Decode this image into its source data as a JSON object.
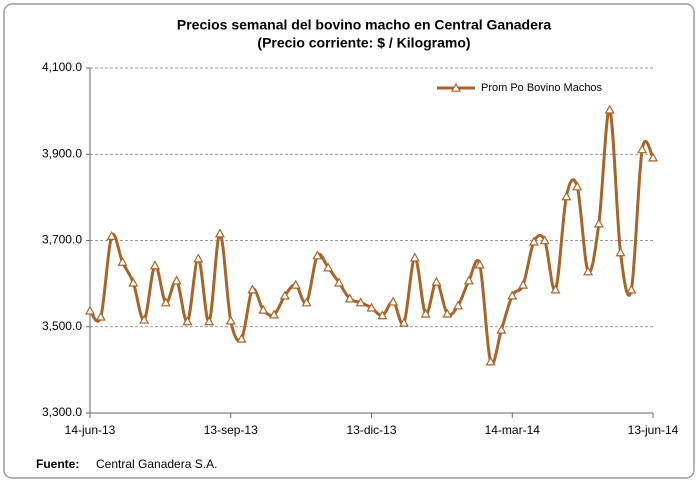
{
  "chart_data": {
    "type": "line",
    "title": "Precios semanal del bovino  macho en Central Ganadera",
    "subtitle": "(Precio corriente: $ / Kilogramo)",
    "categories": [
      "14-jun-13",
      null,
      null,
      null,
      null,
      null,
      null,
      null,
      null,
      null,
      null,
      null,
      null,
      "13-sep-13",
      null,
      null,
      null,
      null,
      null,
      null,
      null,
      null,
      null,
      null,
      null,
      null,
      "13-dic-13",
      null,
      null,
      null,
      null,
      null,
      null,
      null,
      null,
      null,
      null,
      null,
      null,
      "14-mar-14",
      null,
      null,
      null,
      null,
      null,
      null,
      null,
      null,
      null,
      null,
      null,
      null,
      "13-jun-14"
    ],
    "series": [
      {
        "name": "Prom Po Bovino Machos",
        "color": "#a8652a",
        "values": [
          3537,
          3523,
          3710,
          3650,
          3602,
          3516,
          3642,
          3556,
          3607,
          3512,
          3658,
          3512,
          3716,
          3514,
          3472,
          3586,
          3539,
          3528,
          3572,
          3597,
          3556,
          3665,
          3637,
          3602,
          3565,
          3556,
          3544,
          3526,
          3558,
          3509,
          3660,
          3530,
          3604,
          3530,
          3549,
          3607,
          3644,
          3419,
          3493,
          3572,
          3597,
          3697,
          3700,
          3586,
          3802,
          3825,
          3628,
          3739,
          4003,
          3672,
          3586,
          3911,
          3892
        ]
      }
    ],
    "ylim": [
      3300,
      4100
    ],
    "yticks": [
      {
        "value": 3300,
        "label": "3,300.0"
      },
      {
        "value": 3500,
        "label": "3,500.0"
      },
      {
        "value": 3700,
        "label": "3,700.0"
      },
      {
        "value": 3900,
        "label": "3,900.0"
      },
      {
        "value": 4100,
        "label": "4,100.0"
      }
    ],
    "grid": true,
    "legend": "top-right",
    "source_label": "Fuente:",
    "source": "Central Ganadera S.A."
  }
}
